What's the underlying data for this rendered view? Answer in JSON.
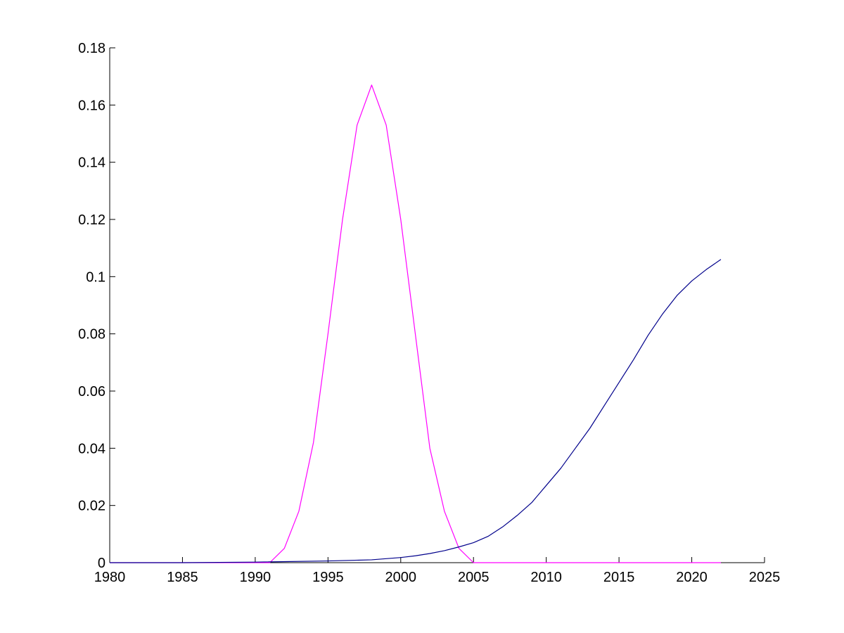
{
  "chart_data": {
    "type": "line",
    "title": "",
    "xlabel": "",
    "ylabel": "",
    "xlim": [
      1980,
      2025
    ],
    "ylim": [
      0,
      0.18
    ],
    "grid": false,
    "legend": "none",
    "xticks": [
      "1980",
      "1985",
      "1990",
      "1995",
      "2000",
      "2005",
      "2010",
      "2015",
      "2020",
      "2025"
    ],
    "yticks": [
      "0",
      "0.02",
      "0.04",
      "0.06",
      "0.08",
      "0.1",
      "0.12",
      "0.14",
      "0.16",
      "0.18"
    ],
    "series": [
      {
        "color": "#ff00ff",
        "x": [
          1980,
          1985,
          1990,
          1991,
          1992,
          1993,
          1994,
          1995,
          1996,
          1997,
          1998,
          1999,
          2000,
          2001,
          2002,
          2003,
          2004,
          2005,
          2010,
          2015,
          2020,
          2022
        ],
        "values": [
          0,
          0,
          0,
          0,
          0.005,
          0.018,
          0.042,
          0.08,
          0.12,
          0.153,
          0.167,
          0.153,
          0.12,
          0.08,
          0.04,
          0.018,
          0.005,
          0,
          0,
          0,
          0,
          0
        ]
      },
      {
        "color": "#00008b",
        "x": [
          1980,
          1985,
          1990,
          1995,
          1998,
          2000,
          2001,
          2002,
          2003,
          2004,
          2005,
          2006,
          2007,
          2008,
          2009,
          2010,
          2011,
          2012,
          2013,
          2014,
          2015,
          2016,
          2017,
          2018,
          2019,
          2020,
          2021,
          2022
        ],
        "values": [
          0,
          0,
          0.0002,
          0.0006,
          0.001,
          0.0018,
          0.0024,
          0.0032,
          0.0042,
          0.0055,
          0.007,
          0.0092,
          0.0125,
          0.0165,
          0.021,
          0.027,
          0.033,
          0.04,
          0.047,
          0.055,
          0.063,
          0.071,
          0.0795,
          0.087,
          0.0935,
          0.0985,
          0.1025,
          0.106
        ]
      }
    ]
  }
}
